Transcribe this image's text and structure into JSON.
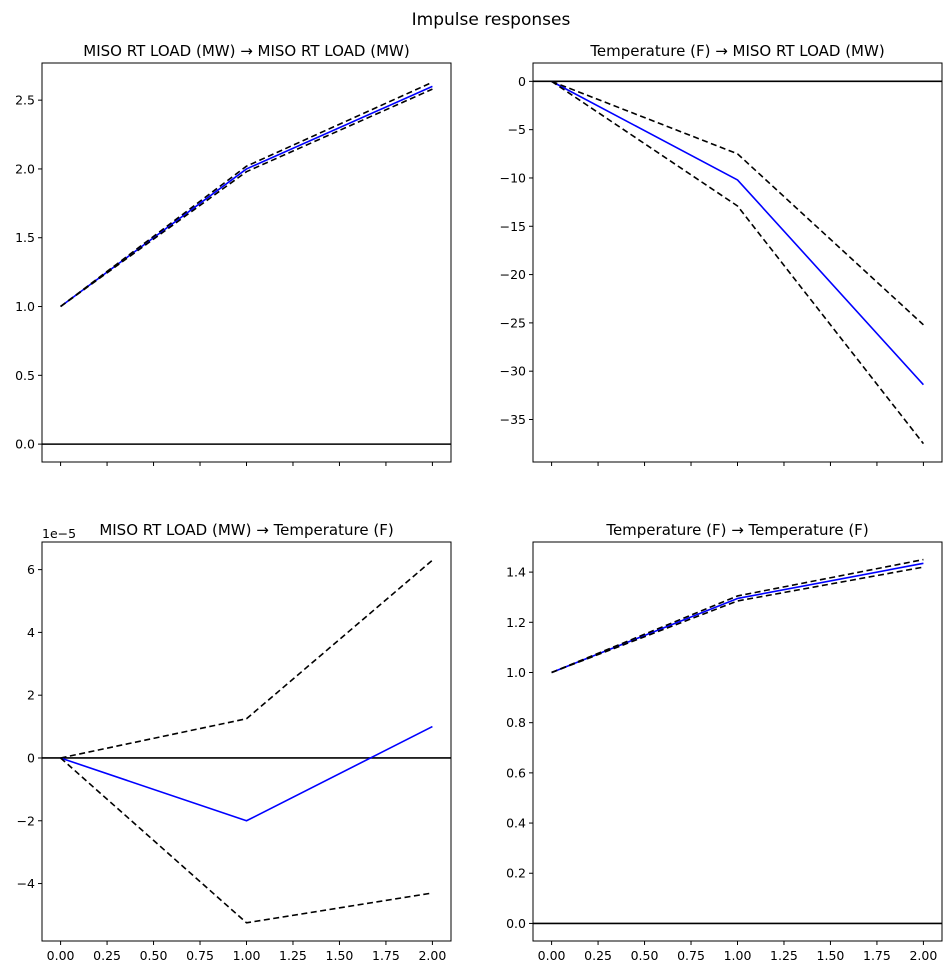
{
  "figure": {
    "title": "Impulse responses"
  },
  "chart_data": [
    {
      "type": "line",
      "title": "MISO RT LOAD (MW) → MISO RT LOAD (MW)",
      "x": [
        0.0,
        1.0,
        2.0
      ],
      "series": [
        {
          "role": "response",
          "color": "#0000ff",
          "values": [
            1.0,
            2.0,
            2.6
          ]
        },
        {
          "role": "upper-band",
          "color": "#000000",
          "values": [
            1.0,
            2.02,
            2.63
          ]
        },
        {
          "role": "lower-band",
          "color": "#000000",
          "values": [
            1.0,
            1.98,
            2.58
          ]
        }
      ],
      "xlim": [
        -0.1,
        2.1
      ],
      "ylim": [
        -0.13,
        2.77
      ],
      "y_ticks": [
        0.0,
        0.5,
        1.0,
        1.5,
        2.0,
        2.5
      ],
      "y_tick_labels": [
        "0.0",
        "0.5",
        "1.0",
        "1.5",
        "2.0",
        "2.5"
      ],
      "x_ticks": [
        0.0,
        0.25,
        0.5,
        0.75,
        1.0,
        1.25,
        1.5,
        1.75,
        2.0
      ],
      "x_tick_labels": [],
      "zero_line": 0,
      "grid": false
    },
    {
      "type": "line",
      "title": "Temperature (F) → MISO RT LOAD (MW)",
      "x": [
        0.0,
        1.0,
        2.0
      ],
      "series": [
        {
          "role": "response",
          "color": "#0000ff",
          "values": [
            0.0,
            -10.2,
            -31.4
          ]
        },
        {
          "role": "upper-band",
          "color": "#000000",
          "values": [
            0.0,
            -7.5,
            -25.2
          ]
        },
        {
          "role": "lower-band",
          "color": "#000000",
          "values": [
            0.0,
            -12.9,
            -37.5
          ]
        }
      ],
      "xlim": [
        -0.1,
        2.1
      ],
      "ylim": [
        -39.4,
        1.9
      ],
      "y_ticks": [
        0,
        -5,
        -10,
        -15,
        -20,
        -25,
        -30,
        -35
      ],
      "y_tick_labels": [
        "0",
        "−5",
        "−10",
        "−15",
        "−20",
        "−25",
        "−30",
        "−35"
      ],
      "x_ticks": [
        0.0,
        0.25,
        0.5,
        0.75,
        1.0,
        1.25,
        1.5,
        1.75,
        2.0
      ],
      "x_tick_labels": [],
      "zero_line": 0,
      "grid": false
    },
    {
      "type": "line",
      "title": "MISO RT LOAD (MW) → Temperature (F)",
      "offset_label": "1e−5",
      "x": [
        0.0,
        1.0,
        2.0
      ],
      "series": [
        {
          "role": "response",
          "color": "#0000ff",
          "values": [
            0.0,
            -2.0,
            1.0
          ]
        },
        {
          "role": "upper-band",
          "color": "#000000",
          "values": [
            0.0,
            1.25,
            6.3
          ]
        },
        {
          "role": "lower-band",
          "color": "#000000",
          "values": [
            0.0,
            -5.25,
            -4.3
          ]
        }
      ],
      "xlim": [
        -0.1,
        2.1
      ],
      "ylim": [
        -5.83,
        6.88
      ],
      "y_ticks": [
        -4,
        -2,
        0,
        2,
        4,
        6
      ],
      "y_tick_labels": [
        "−4",
        "−2",
        "0",
        "2",
        "4",
        "6"
      ],
      "x_ticks": [
        0.0,
        0.25,
        0.5,
        0.75,
        1.0,
        1.25,
        1.5,
        1.75,
        2.0
      ],
      "x_tick_labels": [
        "0.00",
        "0.25",
        "0.50",
        "0.75",
        "1.00",
        "1.25",
        "1.50",
        "1.75",
        "2.00"
      ],
      "zero_line": 0,
      "grid": false
    },
    {
      "type": "line",
      "title": "Temperature (F) → Temperature (F)",
      "x": [
        0.0,
        1.0,
        2.0
      ],
      "series": [
        {
          "role": "response",
          "color": "#0000ff",
          "values": [
            1.0,
            1.295,
            1.435
          ]
        },
        {
          "role": "upper-band",
          "color": "#000000",
          "values": [
            1.0,
            1.305,
            1.45
          ]
        },
        {
          "role": "lower-band",
          "color": "#000000",
          "values": [
            1.0,
            1.285,
            1.42
          ]
        }
      ],
      "xlim": [
        -0.1,
        2.1
      ],
      "ylim": [
        -0.07,
        1.52
      ],
      "y_ticks": [
        0.0,
        0.2,
        0.4,
        0.6,
        0.8,
        1.0,
        1.2,
        1.4
      ],
      "y_tick_labels": [
        "0.0",
        "0.2",
        "0.4",
        "0.6",
        "0.8",
        "1.0",
        "1.2",
        "1.4"
      ],
      "x_ticks": [
        0.0,
        0.25,
        0.5,
        0.75,
        1.0,
        1.25,
        1.5,
        1.75,
        2.0
      ],
      "x_tick_labels": [
        "0.00",
        "0.25",
        "0.50",
        "0.75",
        "1.00",
        "1.25",
        "1.50",
        "1.75",
        "2.00"
      ],
      "zero_line": 0,
      "grid": false
    }
  ]
}
